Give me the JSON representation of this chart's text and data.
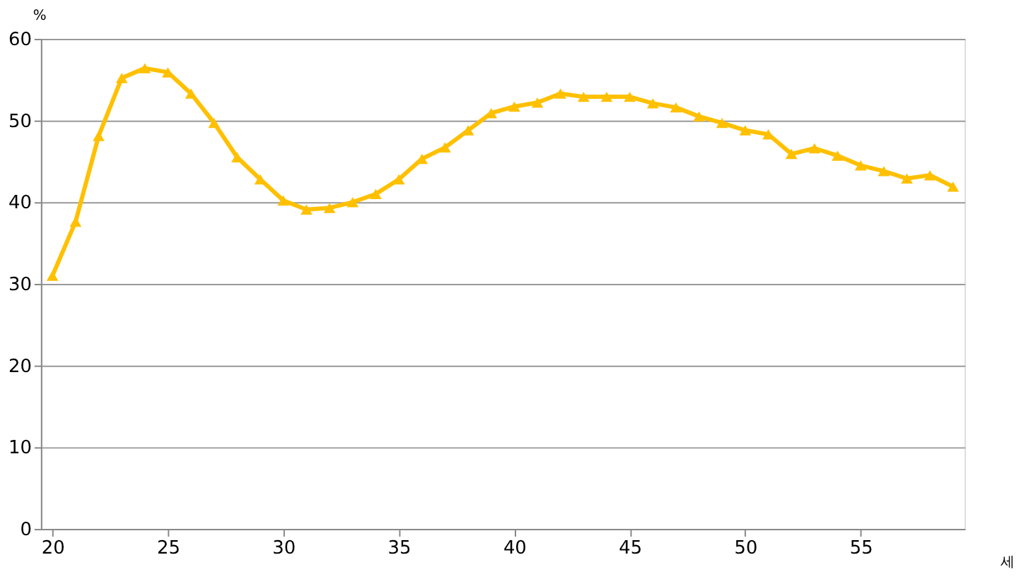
{
  "chart_data": {
    "type": "line",
    "xlabel": "세",
    "ylabel": "%",
    "x": [
      20,
      21,
      22,
      23,
      24,
      25,
      26,
      27,
      28,
      29,
      30,
      31,
      32,
      33,
      34,
      35,
      36,
      37,
      38,
      39,
      40,
      41,
      42,
      43,
      44,
      45,
      46,
      47,
      48,
      49,
      50,
      51,
      52,
      53,
      54,
      55,
      56,
      57,
      58,
      59
    ],
    "series": [
      {
        "color": "#ffc000",
        "values": [
          31.0,
          37.6,
          48.1,
          55.2,
          56.4,
          55.9,
          53.3,
          49.7,
          45.5,
          42.8,
          40.2,
          39.1,
          39.3,
          40.0,
          41.0,
          42.8,
          45.3,
          46.7,
          48.8,
          50.9,
          51.7,
          52.2,
          53.3,
          52.9,
          52.9,
          52.9,
          52.1,
          51.6,
          50.5,
          49.7,
          48.8,
          48.3,
          45.9,
          46.6,
          45.7,
          44.5,
          43.8,
          42.9,
          43.3,
          41.9
        ]
      }
    ],
    "xlim": [
      19.5,
      59.5
    ],
    "xticks": [
      20,
      25,
      30,
      35,
      40,
      45,
      50,
      55
    ],
    "ylim": [
      0,
      60
    ],
    "yticks": [
      0,
      10,
      20,
      30,
      40,
      50,
      60
    ],
    "grid": "y",
    "marker": "triangle",
    "line_style": "solid",
    "legend": false
  }
}
